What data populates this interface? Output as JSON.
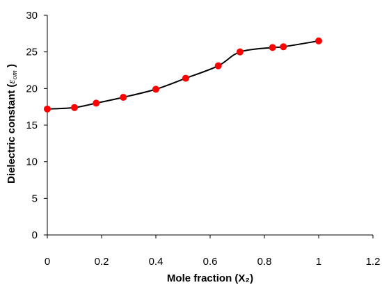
{
  "chart_data": {
    "type": "line",
    "title": "",
    "xlabel": "Mole fraction (X₂)",
    "ylabel_text": "Dielectric constant (",
    "ylabel_symbol": "ε",
    "ylabel_subscript": "om",
    "ylabel_close": " )",
    "xlim": [
      0,
      1.2
    ],
    "ylim": [
      0,
      30
    ],
    "xticks": [
      0,
      0.2,
      0.4,
      0.6,
      0.8,
      1,
      1.2
    ],
    "yticks": [
      0,
      5,
      10,
      15,
      20,
      25,
      30
    ],
    "xtick_labels": [
      "0",
      "0.2",
      "0.4",
      "0.6",
      "0.8",
      "1",
      "1.2"
    ],
    "ytick_labels": [
      "0",
      "5",
      "10",
      "15",
      "20",
      "25",
      "30"
    ],
    "grid": false,
    "legend": "none",
    "series": [
      {
        "x": [
          0.0,
          0.1,
          0.18,
          0.28,
          0.4,
          0.51,
          0.63,
          0.71,
          0.83,
          0.87,
          1.0
        ],
        "y": [
          17.2,
          17.4,
          18.0,
          18.8,
          19.9,
          21.4,
          23.1,
          25.0,
          25.6,
          25.7,
          26.5
        ],
        "line_color": "#000000",
        "marker_color": "#ff0000"
      }
    ]
  }
}
